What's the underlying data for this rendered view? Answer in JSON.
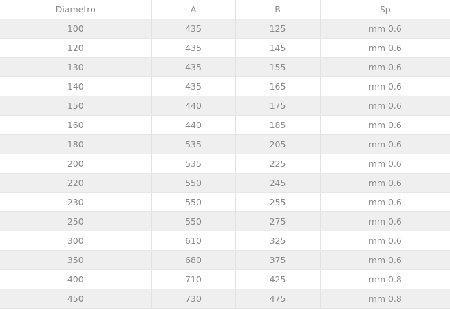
{
  "table": {
    "headers": [
      "Diametro",
      "A",
      "B",
      "Sp"
    ],
    "rows": [
      [
        "100",
        "435",
        "125",
        "mm 0.6"
      ],
      [
        "120",
        "435",
        "145",
        "mm 0.6"
      ],
      [
        "130",
        "435",
        "155",
        "mm 0.6"
      ],
      [
        "140",
        "435",
        "165",
        "mm 0.6"
      ],
      [
        "150",
        "440",
        "175",
        "mm 0.6"
      ],
      [
        "160",
        "440",
        "185",
        "mm 0.6"
      ],
      [
        "180",
        "535",
        "205",
        "mm 0.6"
      ],
      [
        "200",
        "535",
        "225",
        "mm 0.6"
      ],
      [
        "220",
        "550",
        "245",
        "mm 0.6"
      ],
      [
        "230",
        "550",
        "255",
        "mm 0.6"
      ],
      [
        "250",
        "550",
        "275",
        "mm 0.6"
      ],
      [
        "300",
        "610",
        "325",
        "mm 0.6"
      ],
      [
        "350",
        "680",
        "375",
        "mm 0.6"
      ],
      [
        "400",
        "710",
        "425",
        "mm 0.8"
      ],
      [
        "450",
        "730",
        "475",
        "mm 0.8"
      ]
    ]
  },
  "colors": {
    "text": "#8a8a8a",
    "stripe": "#efefef",
    "border": "#e2e2e2"
  }
}
